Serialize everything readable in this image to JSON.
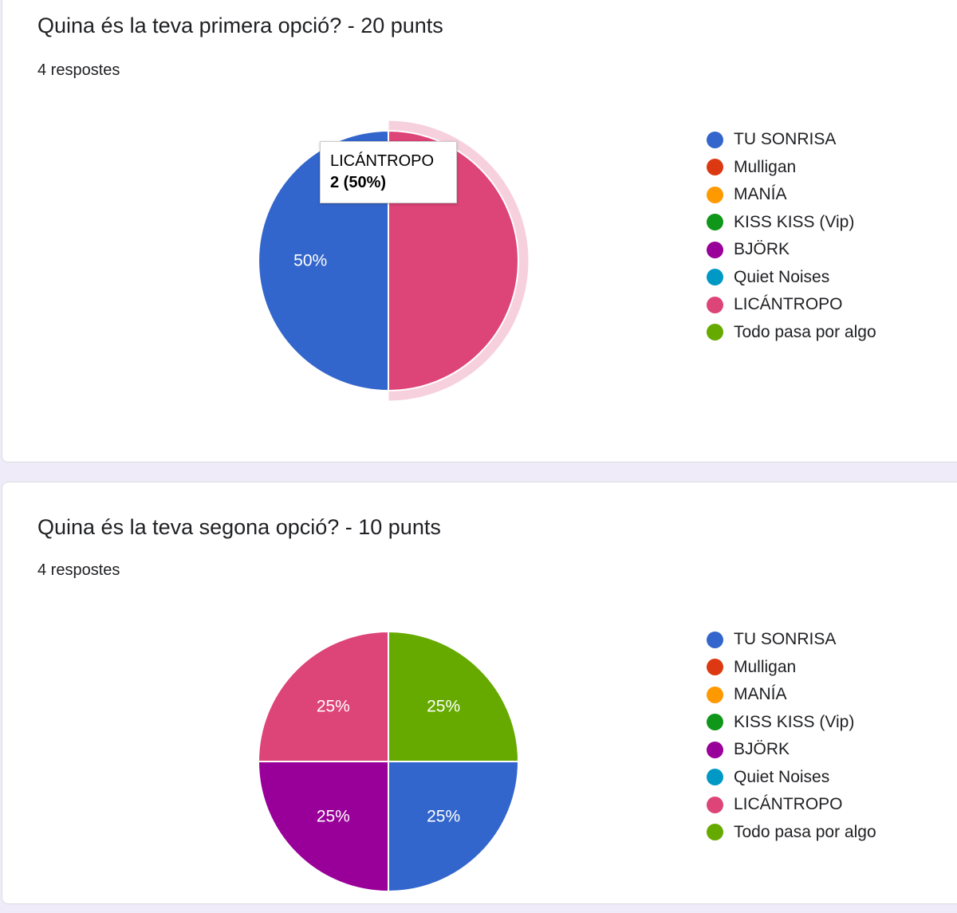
{
  "legend_colors": {
    "TU SONRISA": "#3366cc",
    "Mulligan": "#dc3912",
    "MANÍA": "#ff9900",
    "KISS KISS (Vip)": "#109618",
    "BJÖRK": "#990099",
    "Quiet Noises": "#0099c6",
    "LICÁNTROPO": "#dd4477",
    "Todo pasa por algo": "#66aa00"
  },
  "legend": [
    "TU SONRISA",
    "Mulligan",
    "MANÍA",
    "KISS KISS (Vip)",
    "BJÖRK",
    "Quiet Noises",
    "LICÁNTROPO",
    "Todo pasa por algo"
  ],
  "questions": [
    {
      "title": "Quina és la teva primera opció? - 20 punts",
      "responses": "4 respostes",
      "tooltip": {
        "label": "LICÁNTROPO",
        "value": "2 (50%)"
      }
    },
    {
      "title": "Quina és la teva segona opció? - 10 punts",
      "responses": "4 respostes"
    }
  ],
  "chart_data": [
    {
      "type": "pie",
      "title": "Quina és la teva primera opció? - 20 punts",
      "slices": [
        {
          "label": "LICÁNTROPO",
          "value": 2,
          "percent_label": ""
        },
        {
          "label": "TU SONRISA",
          "value": 2,
          "percent_label": "50%"
        }
      ],
      "highlighted": "LICÁNTROPO"
    },
    {
      "type": "pie",
      "title": "Quina és la teva segona opció? - 10 punts",
      "slices": [
        {
          "label": "Todo pasa por algo",
          "value": 1,
          "percent_label": "25%"
        },
        {
          "label": "TU SONRISA",
          "value": 1,
          "percent_label": "25%"
        },
        {
          "label": "BJÖRK",
          "value": 1,
          "percent_label": "25%"
        },
        {
          "label": "LICÁNTROPO",
          "value": 1,
          "percent_label": "25%"
        }
      ]
    }
  ]
}
